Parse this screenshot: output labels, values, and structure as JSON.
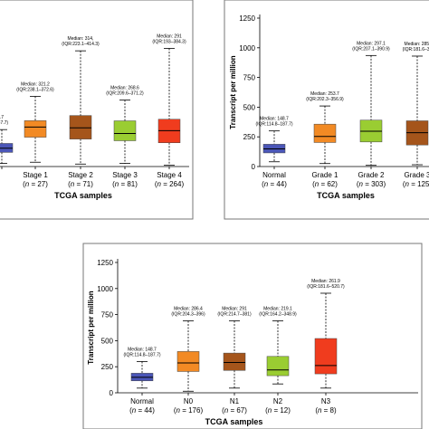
{
  "chart_data": [
    {
      "id": "stage",
      "type": "boxplot",
      "xlabel": "TCGA samples",
      "ylabel": "",
      "ylim": [
        0,
        1250
      ],
      "box_color": "#222222",
      "categories": [
        {
          "label": "",
          "n": "",
          "color": "#4b56b8",
          "median": 148.7,
          "q1": 114.8,
          "q3": 187.7,
          "min": 25,
          "max": 300,
          "ann1": ".7",
          "ann2": "187.7)"
        },
        {
          "label": "Stage 1",
          "n": "27",
          "color": "#f28a24",
          "median": 321.2,
          "q1": 238.1,
          "q3": 372.6,
          "min": 35,
          "max": 570,
          "ann1": "Median: 321.2",
          "ann2": "(IQR:238.1–372.6)"
        },
        {
          "label": "Stage 2",
          "n": "71",
          "color": "#a5551b",
          "median": 314,
          "q1": 223.1,
          "q3": 414.3,
          "min": 20,
          "max": 940,
          "ann1": "Median: 314,",
          "ann2": "(IQR:223.1–414.3)"
        },
        {
          "label": "Stage 3",
          "n": "81",
          "color": "#9acd32",
          "median": 268.6,
          "q1": 209.6,
          "q3": 371.2,
          "min": 25,
          "max": 540,
          "ann1": "Median: 268.6",
          "ann2": "(IQR:209.6–371.2)"
        },
        {
          "label": "Stage 4",
          "n": "264",
          "color": "#f03c1e",
          "median": 291,
          "q1": 193,
          "q3": 384.3,
          "min": 10,
          "max": 960,
          "ann1": "Median: 291",
          "ann2": "(IQR:193–384.3)"
        }
      ]
    },
    {
      "id": "grade",
      "type": "boxplot",
      "xlabel": "TCGA samples",
      "ylabel": "Transcript per million",
      "ylim": [
        0,
        1250
      ],
      "yticks": [
        0,
        250,
        500,
        750,
        1000,
        1250
      ],
      "categories": [
        {
          "label": "Normal",
          "n": "44",
          "color": "#4b56b8",
          "median": 148.7,
          "q1": 114.8,
          "q3": 187.7,
          "min": 40,
          "max": 300,
          "ann1": "Median: 148.7",
          "ann2": "(IQR:114.8–187.7)"
        },
        {
          "label": "Grade 1",
          "n": "62",
          "color": "#f28a24",
          "median": 253.7,
          "q1": 202.3,
          "q3": 356.9,
          "min": 25,
          "max": 510,
          "ann1": "Median: 253.7",
          "ann2": "(IQR:202.3–356.9)"
        },
        {
          "label": "Grade 2",
          "n": "303",
          "color": "#9acd32",
          "median": 297.1,
          "q1": 207.1,
          "q3": 390.9,
          "min": 10,
          "max": 935,
          "ann1": "Median: 297.1",
          "ann2": "(IQR:207.1–390.9)"
        },
        {
          "label": "Grade 3",
          "n": "125",
          "color": "#a5551b",
          "median": 285,
          "q1": 181.6,
          "q3": 385,
          "min": 15,
          "max": 930,
          "ann1": "Median: 285.",
          "ann2": "(IQR:181.6–38"
        }
      ]
    },
    {
      "id": "nodal",
      "type": "boxplot",
      "xlabel": "TCGA samples",
      "ylabel": "Transcript per million",
      "ylim": [
        0,
        1250
      ],
      "yticks": [
        0,
        250,
        500,
        750,
        1000,
        1250
      ],
      "categories": [
        {
          "label": "Normal",
          "n": "44",
          "color": "#4b56b8",
          "median": 148.7,
          "q1": 114.8,
          "q3": 187.7,
          "min": 45,
          "max": 300,
          "ann1": "Median: 148.7",
          "ann2": "(IQR:114.8–187.7)"
        },
        {
          "label": "N0",
          "n": "176",
          "color": "#f28a24",
          "median": 286.4,
          "q1": 204.3,
          "q3": 396,
          "min": 15,
          "max": 690,
          "ann1": "Median: 286.4",
          "ann2": "(IQR:204.3–396)"
        },
        {
          "label": "N1",
          "n": "67",
          "color": "#a5551b",
          "median": 291,
          "q1": 214.7,
          "q3": 381,
          "min": 45,
          "max": 690,
          "ann1": "Median: 291",
          "ann2": "(IQR:214.7–381)"
        },
        {
          "label": "N2",
          "n": "12",
          "color": "#9acd32",
          "median": 219.1,
          "q1": 164.2,
          "q3": 348.9,
          "min": 85,
          "max": 690,
          "ann1": "Median: 219.1",
          "ann2": "(IQR:164.2–348.9)"
        },
        {
          "label": "N3",
          "n": "8",
          "color": "#f03c1e",
          "median": 261.9,
          "q1": 181.6,
          "q3": 520.7,
          "min": 45,
          "max": 955,
          "ann1": "Median: 261.9",
          "ann2": "(IQR:181.6–520.7)"
        }
      ]
    }
  ]
}
